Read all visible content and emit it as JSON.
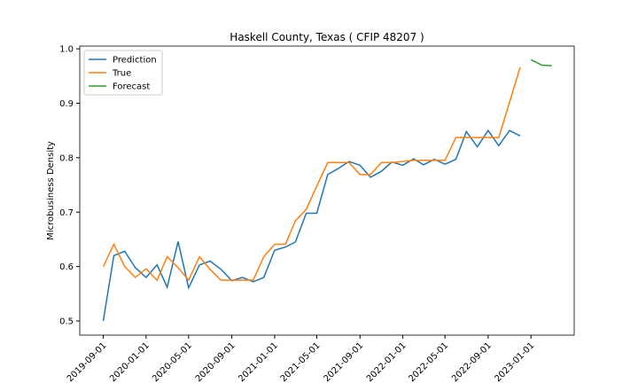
{
  "chart_data": {
    "type": "line",
    "title": "Haskell County, Texas ( CFIP 48207 )",
    "y_label": "Microbusiness Density",
    "xlim": [
      "2019-06-26",
      "2023-05-04"
    ],
    "ylim": [
      0.474,
      1.005
    ],
    "xticks": [
      "2019-09-01",
      "2020-01-01",
      "2020-05-01",
      "2020-09-01",
      "2021-01-01",
      "2021-05-01",
      "2021-09-01",
      "2022-01-01",
      "2022-05-01",
      "2022-09-01",
      "2023-01-01"
    ],
    "yticks": [
      0.5,
      0.6,
      0.7,
      0.8,
      0.9,
      {
        "value": 1,
        "label": "1.0"
      }
    ],
    "legend": "upper left",
    "series": [
      {
        "name": "Prediction",
        "color": "#1f77b4",
        "x": [
          "2019-09-01",
          "2019-10-01",
          "2019-11-01",
          "2019-12-01",
          "2020-01-01",
          "2020-02-01",
          "2020-03-01",
          "2020-04-01",
          "2020-05-01",
          "2020-06-01",
          "2020-07-01",
          "2020-08-01",
          "2020-09-01",
          "2020-10-01",
          "2020-11-01",
          "2020-12-01",
          "2021-01-01",
          "2021-02-01",
          "2021-03-01",
          "2021-04-01",
          "2021-05-01",
          "2021-06-01",
          "2021-07-01",
          "2021-08-01",
          "2021-09-01",
          "2021-10-01",
          "2021-11-01",
          "2021-12-01",
          "2022-01-01",
          "2022-02-01",
          "2022-03-01",
          "2022-04-01",
          "2022-05-01",
          "2022-06-01",
          "2022-07-01",
          "2022-08-01",
          "2022-09-01",
          "2022-10-01",
          "2022-11-01",
          "2022-12-01"
        ],
        "values": [
          0.5,
          0.62,
          0.628,
          0.598,
          0.58,
          0.603,
          0.562,
          0.646,
          0.561,
          0.603,
          0.61,
          0.595,
          0.574,
          0.58,
          0.572,
          0.58,
          0.63,
          0.636,
          0.645,
          0.698,
          0.698,
          0.769,
          0.78,
          0.793,
          0.786,
          0.764,
          0.775,
          0.792,
          0.786,
          0.798,
          0.787,
          0.797,
          0.788,
          0.797,
          0.848,
          0.82,
          0.85,
          0.822,
          0.85,
          0.84
        ]
      },
      {
        "name": "True",
        "color": "#ff7f0e",
        "x": [
          "2019-09-01",
          "2019-10-01",
          "2019-11-01",
          "2019-12-01",
          "2020-01-01",
          "2020-02-01",
          "2020-03-01",
          "2020-04-01",
          "2020-05-01",
          "2020-06-01",
          "2020-07-01",
          "2020-08-01",
          "2020-09-01",
          "2020-10-01",
          "2020-11-01",
          "2020-12-01",
          "2021-01-01",
          "2021-02-01",
          "2021-03-01",
          "2021-04-01",
          "2021-05-01",
          "2021-06-01",
          "2021-07-01",
          "2021-08-01",
          "2021-09-01",
          "2021-10-01",
          "2021-11-01",
          "2021-12-01",
          "2022-01-01",
          "2022-02-01",
          "2022-03-01",
          "2022-04-01",
          "2022-05-01",
          "2022-06-01",
          "2022-07-01",
          "2022-08-01",
          "2022-09-01",
          "2022-10-01",
          "2022-11-01",
          "2022-12-01"
        ],
        "values": [
          0.6,
          0.641,
          0.6,
          0.58,
          0.596,
          0.575,
          0.618,
          0.598,
          0.575,
          0.618,
          0.595,
          0.575,
          0.575,
          0.575,
          0.575,
          0.618,
          0.641,
          0.641,
          0.684,
          0.705,
          0.748,
          0.791,
          0.791,
          0.791,
          0.769,
          0.769,
          0.791,
          0.791,
          0.793,
          0.795,
          0.795,
          0.795,
          0.795,
          0.837,
          0.837,
          0.837,
          0.837,
          0.837,
          0.902,
          0.966
        ]
      },
      {
        "name": "Forecast",
        "color": "#2ca02c",
        "x": [
          "2023-01-01",
          "2023-02-01",
          "2023-03-01"
        ],
        "values": [
          0.98,
          0.97,
          0.969
        ]
      }
    ]
  }
}
